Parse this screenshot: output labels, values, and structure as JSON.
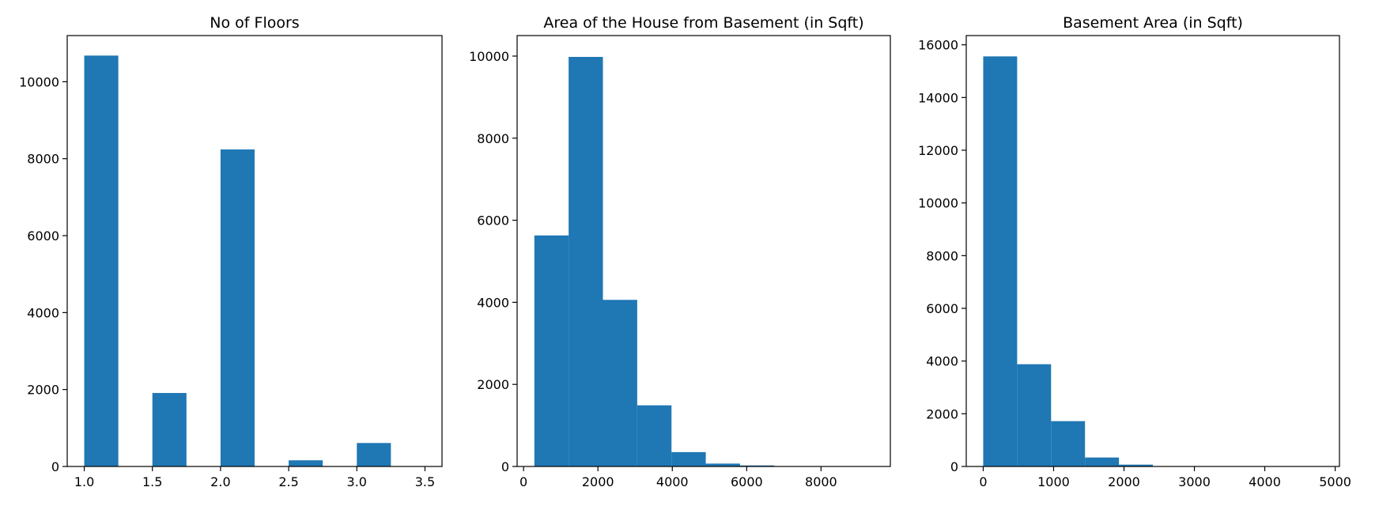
{
  "chart_data": [
    {
      "type": "bar",
      "title": "No of Floors",
      "xlabel": "",
      "ylabel": "",
      "xlim": [
        0.875,
        3.625
      ],
      "ylim": [
        0,
        11200
      ],
      "xticks": [
        1.0,
        1.5,
        2.0,
        2.5,
        3.0,
        3.5
      ],
      "xtick_labels": [
        "1.0",
        "1.5",
        "2.0",
        "2.5",
        "3.0",
        "3.5"
      ],
      "yticks": [
        0,
        2000,
        4000,
        6000,
        8000,
        10000
      ],
      "ytick_labels": [
        "0",
        "2000",
        "4000",
        "6000",
        "8000",
        "10000"
      ],
      "bins": [
        {
          "x0": 1.0,
          "x1": 1.25,
          "value": 10680
        },
        {
          "x0": 1.25,
          "x1": 1.5,
          "value": 0
        },
        {
          "x0": 1.5,
          "x1": 1.75,
          "value": 1910
        },
        {
          "x0": 1.75,
          "x1": 2.0,
          "value": 0
        },
        {
          "x0": 2.0,
          "x1": 2.25,
          "value": 8240
        },
        {
          "x0": 2.25,
          "x1": 2.5,
          "value": 0
        },
        {
          "x0": 2.5,
          "x1": 2.75,
          "value": 160
        },
        {
          "x0": 2.75,
          "x1": 3.0,
          "value": 0
        },
        {
          "x0": 3.0,
          "x1": 3.25,
          "value": 610
        },
        {
          "x0": 3.25,
          "x1": 3.5,
          "value": 8
        }
      ],
      "grid": false,
      "color": "#1f77b4"
    },
    {
      "type": "bar",
      "title": "Area of the House from Basement (in Sqft)",
      "xlabel": "",
      "ylabel": "",
      "xlim": [
        -173,
        9863
      ],
      "ylim": [
        0,
        10500
      ],
      "xticks": [
        0,
        2000,
        4000,
        6000,
        8000
      ],
      "xtick_labels": [
        "0",
        "2000",
        "4000",
        "6000",
        "8000"
      ],
      "yticks": [
        0,
        2000,
        4000,
        6000,
        8000,
        10000
      ],
      "ytick_labels": [
        "0",
        "2000",
        "4000",
        "6000",
        "8000",
        "10000"
      ],
      "bins": [
        {
          "x0": 290,
          "x1": 1212,
          "value": 5630
        },
        {
          "x0": 1212,
          "x1": 2134,
          "value": 9980
        },
        {
          "x0": 2134,
          "x1": 3056,
          "value": 4060
        },
        {
          "x0": 3056,
          "x1": 3978,
          "value": 1490
        },
        {
          "x0": 3978,
          "x1": 4900,
          "value": 350
        },
        {
          "x0": 4900,
          "x1": 5822,
          "value": 70
        },
        {
          "x0": 5822,
          "x1": 6744,
          "value": 25
        },
        {
          "x0": 6744,
          "x1": 7666,
          "value": 6
        },
        {
          "x0": 7666,
          "x1": 8588,
          "value": 2
        },
        {
          "x0": 8588,
          "x1": 9410,
          "value": 1
        }
      ],
      "grid": false,
      "color": "#1f77b4"
    },
    {
      "type": "bar",
      "title": "Basement Area (in Sqft)",
      "xlabel": "",
      "ylabel": "",
      "xlim": [
        -241,
        5061
      ],
      "ylim": [
        0,
        16350
      ],
      "xticks": [
        0,
        1000,
        2000,
        3000,
        4000,
        5000
      ],
      "xtick_labels": [
        "0",
        "1000",
        "2000",
        "3000",
        "4000",
        "5000"
      ],
      "yticks": [
        0,
        2000,
        4000,
        6000,
        8000,
        10000,
        12000,
        14000,
        16000
      ],
      "ytick_labels": [
        "0",
        "2000",
        "4000",
        "6000",
        "8000",
        "10000",
        "12000",
        "14000",
        "16000"
      ],
      "bins": [
        {
          "x0": 0,
          "x1": 482,
          "value": 15560
        },
        {
          "x0": 482,
          "x1": 964,
          "value": 3880
        },
        {
          "x0": 964,
          "x1": 1446,
          "value": 1720
        },
        {
          "x0": 1446,
          "x1": 1928,
          "value": 340
        },
        {
          "x0": 1928,
          "x1": 2410,
          "value": 70
        },
        {
          "x0": 2410,
          "x1": 2892,
          "value": 10
        },
        {
          "x0": 2892,
          "x1": 3374,
          "value": 3
        },
        {
          "x0": 3374,
          "x1": 3856,
          "value": 1
        },
        {
          "x0": 3856,
          "x1": 4338,
          "value": 0
        },
        {
          "x0": 4338,
          "x1": 4820,
          "value": 1
        }
      ],
      "grid": false,
      "color": "#1f77b4"
    }
  ]
}
